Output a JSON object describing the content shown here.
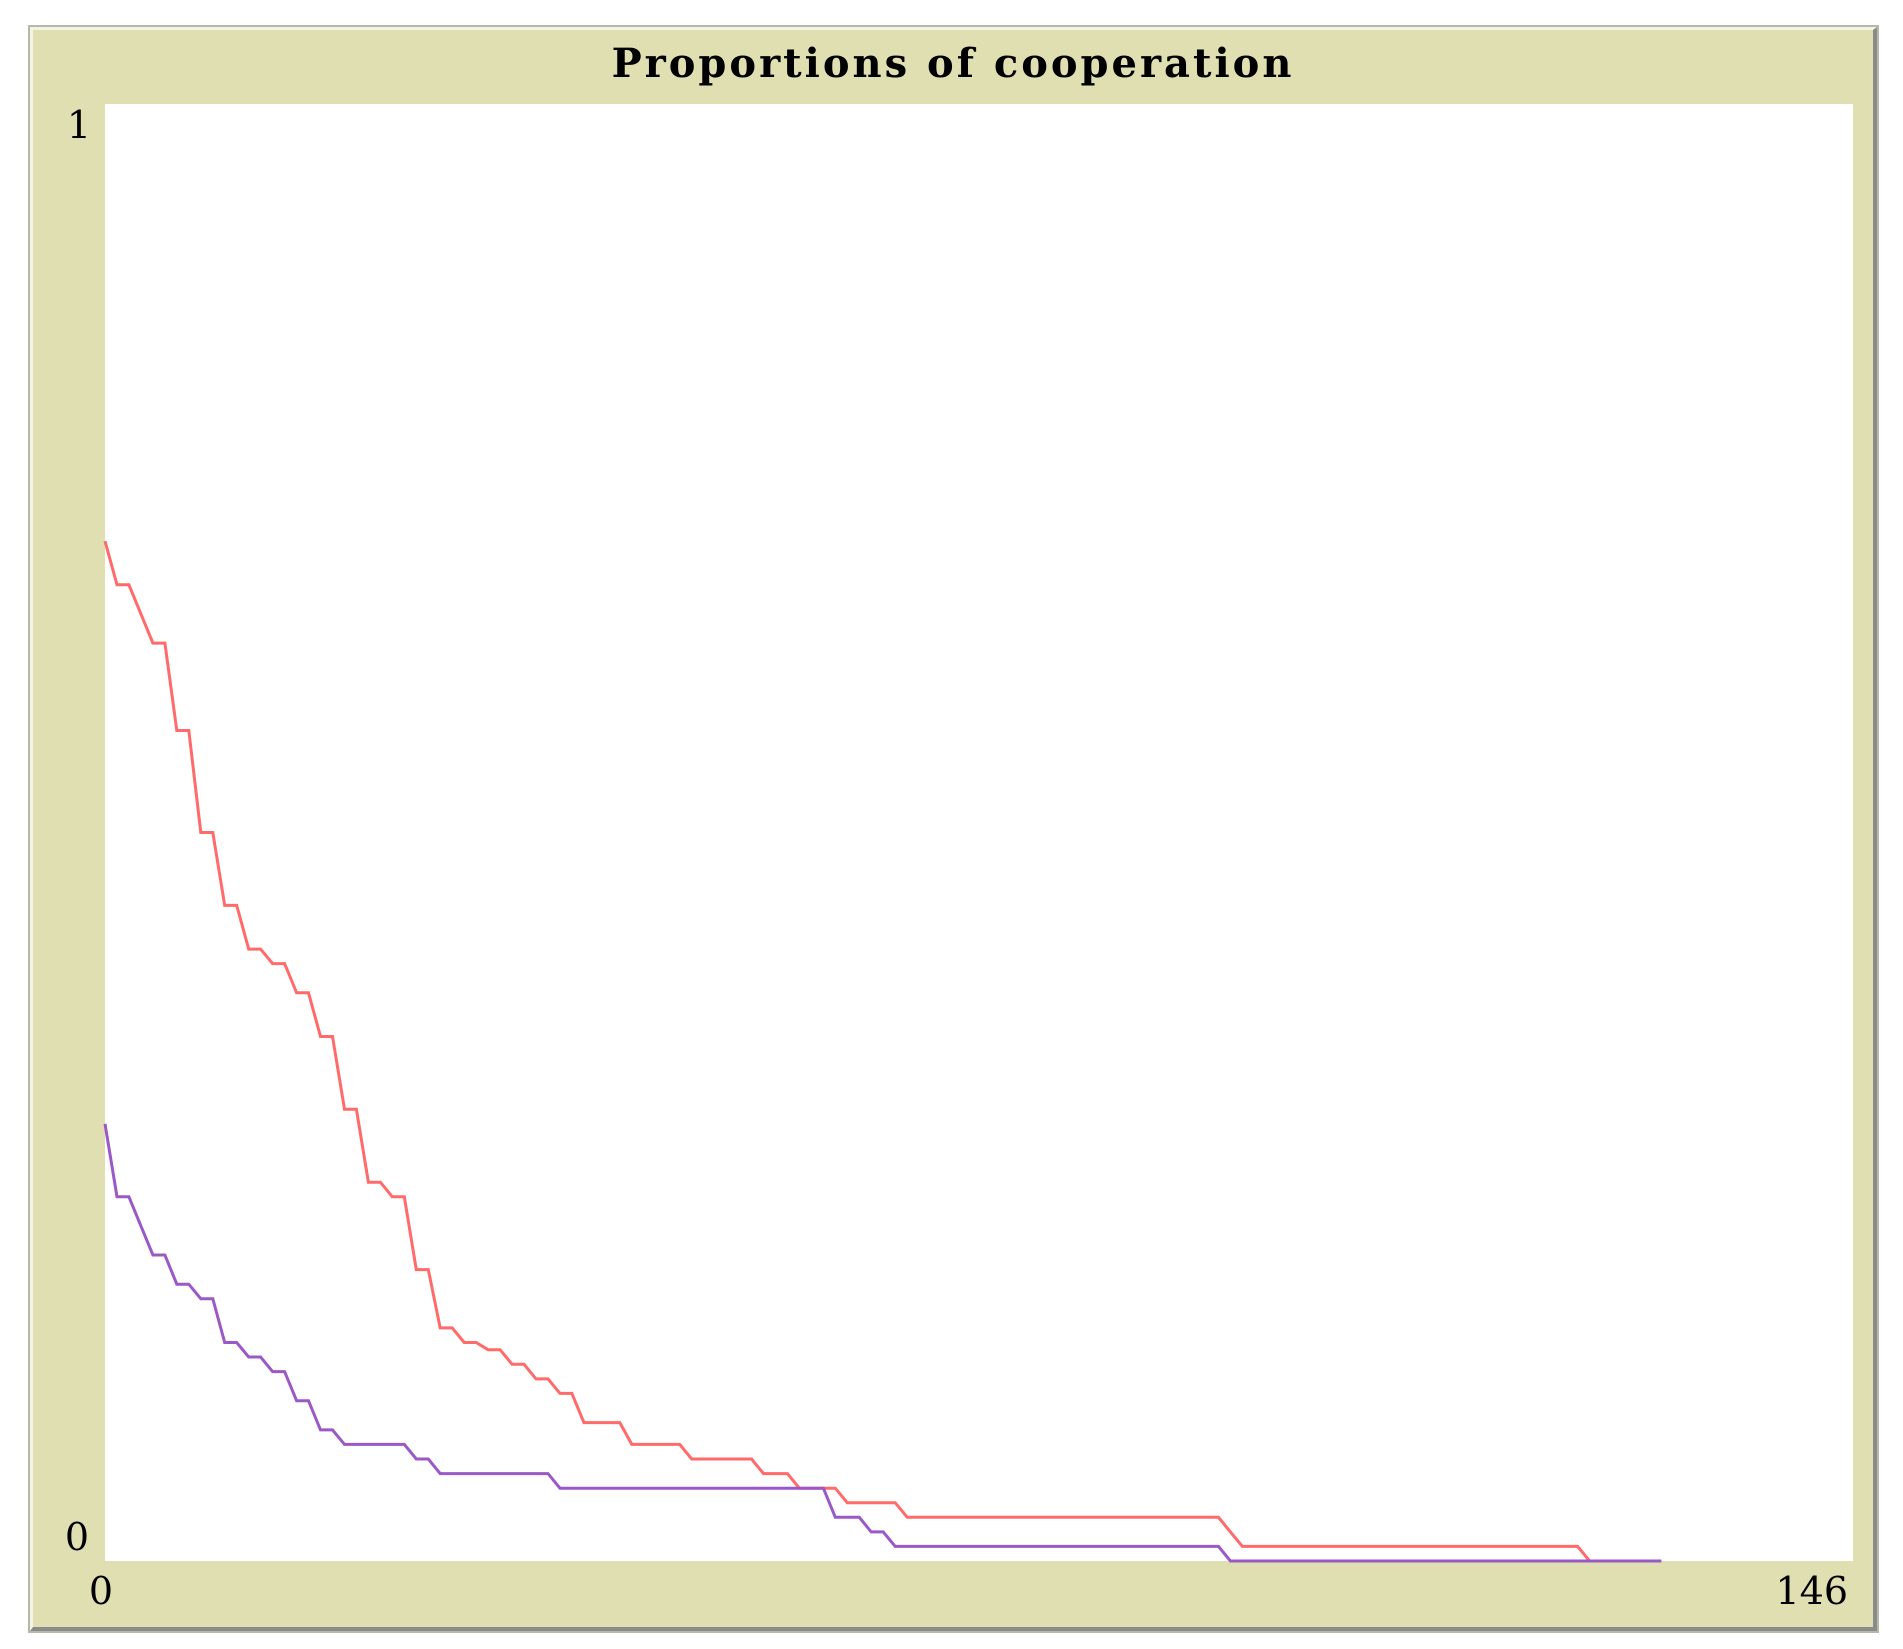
{
  "plot": {
    "title": "Proportions of cooperation",
    "background_color": "#e0dfb2",
    "plot_area_color": "#ffffff"
  },
  "chart_data": {
    "type": "line",
    "title": "Proportions of cooperation",
    "xlabel": "",
    "ylabel": "",
    "xlim": [
      0,
      146
    ],
    "ylim": [
      0,
      1
    ],
    "x_tick_labels": [
      "0",
      "146"
    ],
    "y_tick_labels": [
      "0",
      "1"
    ],
    "grid": false,
    "legend": false,
    "series": [
      {
        "color": "#ff6a6a",
        "x": [
          0,
          1,
          2,
          3,
          4,
          5,
          6,
          7,
          8,
          9,
          10,
          11,
          12,
          13,
          14,
          15,
          16,
          17,
          18,
          19,
          20,
          21,
          22,
          23,
          24,
          25,
          26,
          27,
          28,
          29,
          30,
          31,
          32,
          33,
          34,
          35,
          36,
          37,
          38,
          39,
          40,
          41,
          42,
          43,
          44,
          45,
          46,
          47,
          48,
          49,
          50,
          51,
          52,
          53,
          54,
          55,
          56,
          57,
          58,
          59,
          60,
          61,
          62,
          63,
          64,
          65,
          66,
          67,
          68,
          69,
          70,
          71,
          72,
          73,
          74,
          75,
          76,
          77,
          78,
          79,
          80,
          81,
          82,
          83,
          84,
          85,
          86,
          87,
          88,
          89,
          90,
          91,
          92,
          93,
          94,
          95,
          96,
          97,
          98,
          99,
          100,
          101,
          102,
          103,
          104,
          105,
          106,
          107,
          108,
          109,
          110,
          111,
          112,
          113,
          114,
          115,
          116,
          117,
          118,
          119,
          120,
          121,
          122,
          123,
          124,
          125
        ],
        "y": [
          0.7,
          0.67,
          0.67,
          0.65,
          0.63,
          0.63,
          0.57,
          0.57,
          0.5,
          0.5,
          0.45,
          0.45,
          0.42,
          0.42,
          0.41,
          0.41,
          0.39,
          0.39,
          0.36,
          0.36,
          0.31,
          0.31,
          0.26,
          0.26,
          0.25,
          0.25,
          0.2,
          0.2,
          0.16,
          0.16,
          0.15,
          0.15,
          0.145,
          0.145,
          0.135,
          0.135,
          0.125,
          0.125,
          0.115,
          0.115,
          0.095,
          0.095,
          0.095,
          0.095,
          0.08,
          0.08,
          0.08,
          0.08,
          0.08,
          0.07,
          0.07,
          0.07,
          0.07,
          0.07,
          0.07,
          0.06,
          0.06,
          0.06,
          0.05,
          0.05,
          0.05,
          0.05,
          0.04,
          0.04,
          0.04,
          0.04,
          0.04,
          0.03,
          0.03,
          0.03,
          0.03,
          0.03,
          0.03,
          0.03,
          0.03,
          0.03,
          0.03,
          0.03,
          0.03,
          0.03,
          0.03,
          0.03,
          0.03,
          0.03,
          0.03,
          0.03,
          0.03,
          0.03,
          0.03,
          0.03,
          0.03,
          0.03,
          0.03,
          0.03,
          0.02,
          0.01,
          0.01,
          0.01,
          0.01,
          0.01,
          0.01,
          0.01,
          0.01,
          0.01,
          0.01,
          0.01,
          0.01,
          0.01,
          0.01,
          0.01,
          0.01,
          0.01,
          0.01,
          0.01,
          0.01,
          0.01,
          0.01,
          0.01,
          0.01,
          0.01,
          0.01,
          0.01,
          0.01,
          0.01,
          0.0,
          0.0
        ]
      },
      {
        "color": "#9b59c7",
        "x": [
          0,
          1,
          2,
          3,
          4,
          5,
          6,
          7,
          8,
          9,
          10,
          11,
          12,
          13,
          14,
          15,
          16,
          17,
          18,
          19,
          20,
          21,
          22,
          23,
          24,
          25,
          26,
          27,
          28,
          29,
          30,
          31,
          32,
          33,
          34,
          35,
          36,
          37,
          38,
          39,
          40,
          41,
          42,
          43,
          44,
          45,
          46,
          47,
          48,
          49,
          50,
          51,
          52,
          53,
          54,
          55,
          56,
          57,
          58,
          59,
          60,
          61,
          62,
          63,
          64,
          65,
          66,
          67,
          68,
          69,
          70,
          71,
          72,
          73,
          74,
          75,
          76,
          77,
          78,
          79,
          80,
          81,
          82,
          83,
          84,
          85,
          86,
          87,
          88,
          89,
          90,
          91,
          92,
          93,
          94,
          95,
          96,
          97,
          98,
          99,
          100,
          101,
          102,
          103,
          104,
          105,
          106,
          107,
          108,
          109,
          110,
          111,
          112,
          113,
          114,
          115,
          116,
          117,
          118,
          119,
          120,
          121,
          122,
          123,
          124,
          125,
          126,
          127,
          128,
          129,
          130
        ],
        "y": [
          0.3,
          0.25,
          0.25,
          0.23,
          0.21,
          0.21,
          0.19,
          0.19,
          0.18,
          0.18,
          0.15,
          0.15,
          0.14,
          0.14,
          0.13,
          0.13,
          0.11,
          0.11,
          0.09,
          0.09,
          0.08,
          0.08,
          0.08,
          0.08,
          0.08,
          0.08,
          0.07,
          0.07,
          0.06,
          0.06,
          0.06,
          0.06,
          0.06,
          0.06,
          0.06,
          0.06,
          0.06,
          0.06,
          0.05,
          0.05,
          0.05,
          0.05,
          0.05,
          0.05,
          0.05,
          0.05,
          0.05,
          0.05,
          0.05,
          0.05,
          0.05,
          0.05,
          0.05,
          0.05,
          0.05,
          0.05,
          0.05,
          0.05,
          0.05,
          0.05,
          0.05,
          0.03,
          0.03,
          0.03,
          0.02,
          0.02,
          0.01,
          0.01,
          0.01,
          0.01,
          0.01,
          0.01,
          0.01,
          0.01,
          0.01,
          0.01,
          0.01,
          0.01,
          0.01,
          0.01,
          0.01,
          0.01,
          0.01,
          0.01,
          0.01,
          0.01,
          0.01,
          0.01,
          0.01,
          0.01,
          0.01,
          0.01,
          0.01,
          0.01,
          0.0,
          0.0,
          0.0,
          0.0,
          0.0,
          0.0,
          0.0,
          0.0,
          0.0,
          0.0,
          0.0,
          0.0,
          0.0,
          0.0,
          0.0,
          0.0,
          0.0,
          0.0,
          0.0,
          0.0,
          0.0,
          0.0,
          0.0,
          0.0,
          0.0,
          0.0,
          0.0,
          0.0,
          0.0,
          0.0,
          0.0,
          0.0,
          0.0,
          0.0,
          0.0,
          0.0,
          0.0
        ]
      }
    ]
  }
}
